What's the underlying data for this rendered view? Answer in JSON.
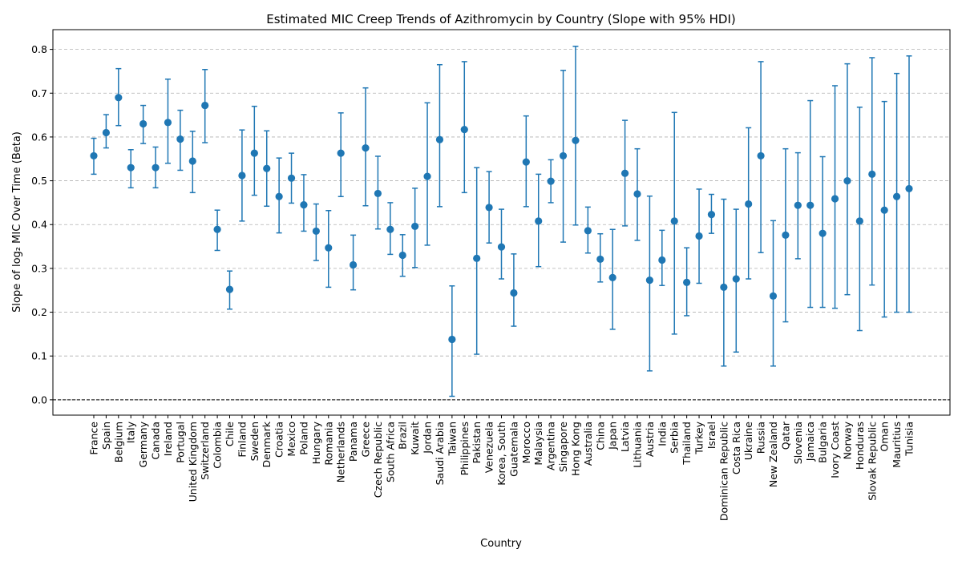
{
  "chart_data": {
    "type": "scatter",
    "title": "Estimated MIC Creep Trends of Azithromycin by Country (Slope with 95% HDI)",
    "xlabel": "Country",
    "ylabel": "Slope of log₂ MIC Over Time (Beta)",
    "ylim": [
      -0.035,
      0.845
    ],
    "yticks": [
      0.0,
      0.1,
      0.2,
      0.3,
      0.4,
      0.5,
      0.6,
      0.7,
      0.8
    ],
    "grid": "y-dashed",
    "reference_line_y": 0.0,
    "colors": {
      "marker": "#1f77b4",
      "errorbar": "#1f77b4",
      "grid": "#b0b0b0",
      "reference": "#000000"
    },
    "categories": [
      "France",
      "Spain",
      "Belgium",
      "Italy",
      "Germany",
      "Canada",
      "Ireland",
      "Portugal",
      "United Kingdom",
      "Switzerland",
      "Colombia",
      "Chile",
      "Finland",
      "Sweden",
      "Denmark",
      "Croatia",
      "Mexico",
      "Poland",
      "Hungary",
      "Romania",
      "Netherlands",
      "Panama",
      "Greece",
      "Czech Republic",
      "South Africa",
      "Brazil",
      "Kuwait",
      "Jordan",
      "Saudi Arabia",
      "Taiwan",
      "Philippines",
      "Pakistan",
      "Venezuela",
      "Korea, South",
      "Guatemala",
      "Morocco",
      "Malaysia",
      "Argentina",
      "Singapore",
      "Hong Kong",
      "Australia",
      "China",
      "Japan",
      "Latvia",
      "Lithuania",
      "Austria",
      "India",
      "Serbia",
      "Thailand",
      "Turkey",
      "Israel",
      "Dominican Republic",
      "Costa Rica",
      "Ukraine",
      "Russia",
      "New Zealand",
      "Qatar",
      "Slovenia",
      "Jamaica",
      "Bulgaria",
      "Ivory Coast",
      "Norway",
      "Honduras",
      "Slovak Republic",
      "Oman",
      "Mauritius",
      "Tunisia"
    ],
    "values": [
      0.557,
      0.61,
      0.69,
      0.53,
      0.63,
      0.53,
      0.633,
      0.595,
      0.545,
      0.672,
      0.389,
      0.252,
      0.512,
      0.563,
      0.528,
      0.464,
      0.506,
      0.445,
      0.385,
      0.347,
      0.563,
      0.308,
      0.575,
      0.471,
      0.389,
      0.33,
      0.396,
      0.51,
      0.594,
      0.138,
      0.617,
      0.323,
      0.439,
      0.349,
      0.244,
      0.543,
      0.408,
      0.499,
      0.557,
      0.592,
      0.386,
      0.321,
      0.279,
      0.517,
      0.47,
      0.273,
      0.319,
      0.408,
      0.268,
      0.374,
      0.423,
      0.257,
      0.276,
      0.447,
      0.557,
      0.237,
      0.376,
      0.444,
      0.444,
      0.38,
      0.459,
      0.5,
      0.408,
      0.515,
      0.433,
      0.464,
      0.482
    ],
    "lower": [
      0.515,
      0.575,
      0.626,
      0.484,
      0.585,
      0.484,
      0.54,
      0.524,
      0.473,
      0.587,
      0.341,
      0.207,
      0.408,
      0.467,
      0.442,
      0.381,
      0.449,
      0.385,
      0.318,
      0.257,
      0.464,
      0.251,
      0.443,
      0.39,
      0.332,
      0.282,
      0.302,
      0.353,
      0.441,
      0.008,
      0.473,
      0.104,
      0.358,
      0.276,
      0.168,
      0.441,
      0.304,
      0.45,
      0.36,
      0.399,
      0.335,
      0.269,
      0.161,
      0.397,
      0.364,
      0.066,
      0.261,
      0.15,
      0.192,
      0.266,
      0.38,
      0.077,
      0.109,
      0.276,
      0.336,
      0.077,
      0.178,
      0.322,
      0.211,
      0.211,
      0.209,
      0.24,
      0.158,
      0.262,
      0.189,
      0.2,
      0.2
    ],
    "upper": [
      0.597,
      0.651,
      0.756,
      0.571,
      0.672,
      0.577,
      0.732,
      0.661,
      0.613,
      0.754,
      0.433,
      0.294,
      0.616,
      0.67,
      0.614,
      0.552,
      0.563,
      0.514,
      0.447,
      0.432,
      0.655,
      0.376,
      0.712,
      0.556,
      0.45,
      0.377,
      0.483,
      0.678,
      0.765,
      0.26,
      0.772,
      0.53,
      0.521,
      0.435,
      0.333,
      0.648,
      0.515,
      0.548,
      0.752,
      0.807,
      0.44,
      0.379,
      0.389,
      0.638,
      0.573,
      0.465,
      0.387,
      0.656,
      0.347,
      0.481,
      0.469,
      0.458,
      0.435,
      0.621,
      0.772,
      0.409,
      0.573,
      0.564,
      0.683,
      0.555,
      0.717,
      0.767,
      0.668,
      0.781,
      0.681,
      0.745,
      0.785
    ]
  }
}
